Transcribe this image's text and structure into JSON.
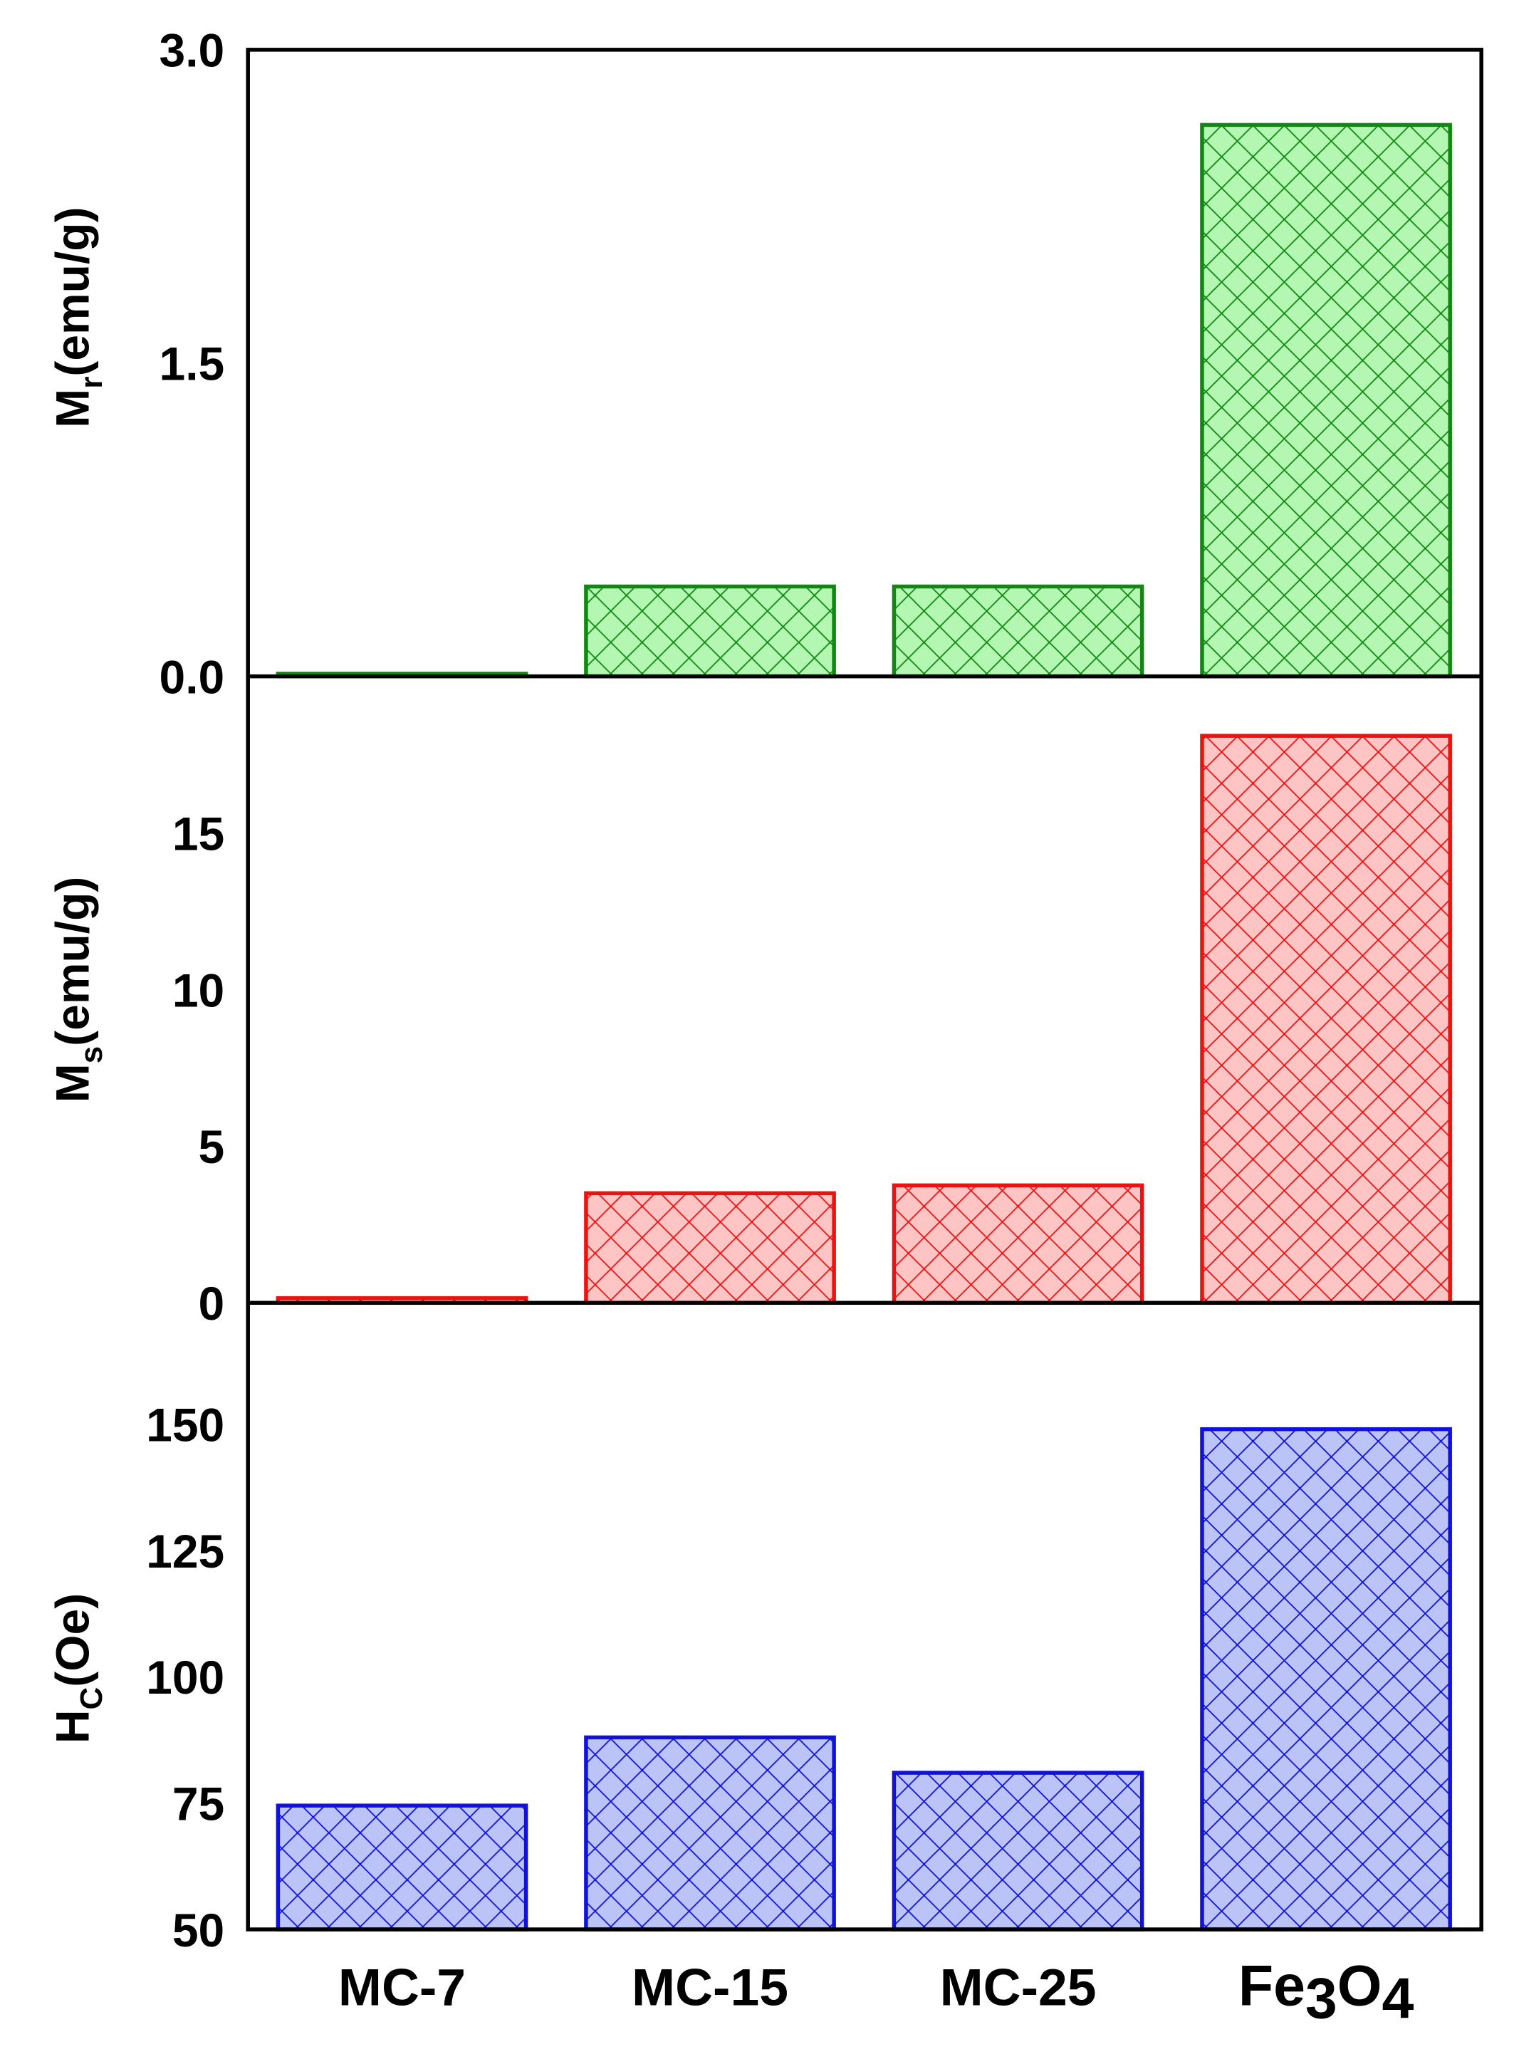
{
  "chart_data": [
    {
      "type": "bar",
      "ylabel": "Mr(emu/g)",
      "ylabel_main": "M",
      "ylabel_sub": "r",
      "ylabel_rest": "(emu/g)",
      "categories": [
        "MC-7",
        "MC-15",
        "MC-25",
        "Fe3O4"
      ],
      "values": [
        0.01,
        0.43,
        0.43,
        2.64
      ],
      "ylim": [
        0,
        3.0
      ],
      "yticks": [
        "0.0",
        "1.5",
        "3.0"
      ],
      "ytick_values": [
        0,
        1.5,
        3.0
      ],
      "color": "#118811",
      "fill": "#b3f7b3",
      "pattern": "crosshatch"
    },
    {
      "type": "bar",
      "ylabel": "Ms(emu/g)",
      "ylabel_main": "M",
      "ylabel_sub": "s",
      "ylabel_rest": "(emu/g)",
      "categories": [
        "MC-7",
        "MC-15",
        "MC-25",
        "Fe3O4"
      ],
      "values": [
        0.15,
        3.5,
        3.75,
        18.1
      ],
      "ylim": [
        0,
        20
      ],
      "yticks": [
        "0",
        "5",
        "10",
        "15"
      ],
      "ytick_values": [
        0,
        5,
        10,
        15
      ],
      "color": "#ee1111",
      "fill": "#ffc4c4",
      "pattern": "crosshatch"
    },
    {
      "type": "bar",
      "ylabel": "HC(Oe)",
      "ylabel_main": "H",
      "ylabel_sub": "C",
      "ylabel_rest": "(Oe)",
      "categories": [
        "MC-7",
        "MC-15",
        "MC-25",
        "Fe3O4"
      ],
      "values": [
        74.5,
        88,
        81,
        149
      ],
      "ylim": [
        50,
        174
      ],
      "yticks": [
        "50",
        "75",
        "100",
        "125",
        "150"
      ],
      "ytick_values": [
        50,
        75,
        100,
        125,
        150
      ],
      "color": "#1111dd",
      "fill": "#bcc4f7",
      "pattern": "crosshatch"
    }
  ],
  "xaxis": {
    "labels": [
      {
        "text": "MC-7"
      },
      {
        "text": "MC-15"
      },
      {
        "text": "MC-25"
      },
      {
        "text": "Fe",
        "sub1": "3",
        "mid": "O",
        "sub2": "4"
      }
    ]
  }
}
